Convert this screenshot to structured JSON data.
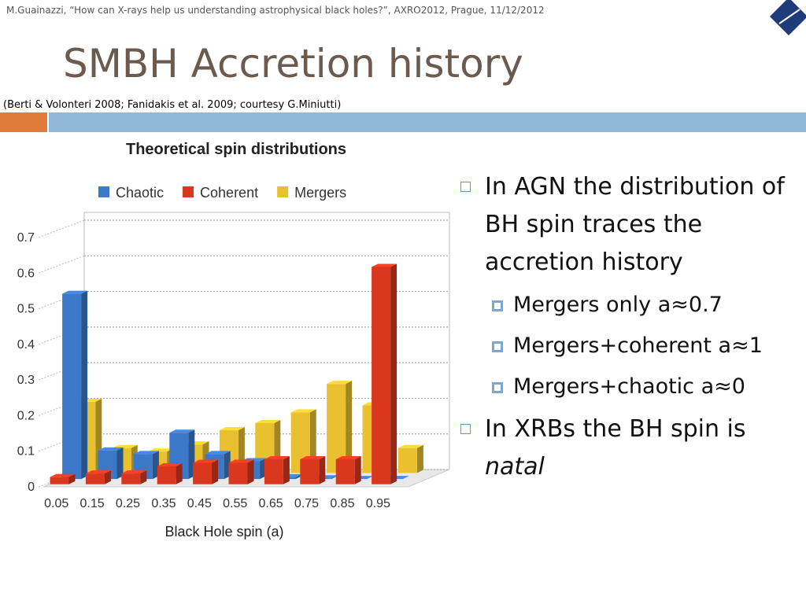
{
  "header": {
    "citation": "M.Guainazzi, “How can X-rays help us understanding astrophysical black holes?”, AXRO2012, Prague, 11/12/2012",
    "title": "SMBH Accretion history",
    "reference": "(Berti & Volonteri 2008; Fanidakis et al. 2009; courtesy G.Miniutti)"
  },
  "bullets": [
    {
      "text": "In AGN the distribution of BH spin traces the accretion history",
      "sub": [
        "Mergers only a≈0.7",
        "Mergers+coherent a≈1",
        "Mergers+chaotic a≈0"
      ]
    },
    {
      "text": "In XRBs the BH spin is",
      "emphasis": "natal"
    }
  ],
  "chart_data": {
    "type": "bar",
    "title": "Theoretical spin distributions",
    "x_label": "Black Hole spin (a)",
    "categories": [
      "0.05",
      "0.15",
      "0.25",
      "0.35",
      "0.45",
      "0.55",
      "0.65",
      "0.75",
      "0.85",
      "0.95"
    ],
    "series": [
      {
        "name": "Chaotic",
        "color": "#3b78c8",
        "values": [
          0.52,
          0.08,
          0.07,
          0.13,
          0.07,
          0.05,
          0.005,
          0.002,
          0,
          0
        ]
      },
      {
        "name": "Coherent",
        "color": "#d9381e",
        "values": [
          0.02,
          0.03,
          0.03,
          0.05,
          0.06,
          0.06,
          0.07,
          0.07,
          0.07,
          0.61
        ]
      },
      {
        "name": "Mergers",
        "color": "#e8c030",
        "values": [
          0.2,
          0.07,
          0.06,
          0.08,
          0.12,
          0.14,
          0.17,
          0.25,
          0.19,
          0.07
        ]
      }
    ],
    "ylim": [
      0,
      0.7
    ],
    "yticks": [
      0,
      0.1,
      0.2,
      0.3,
      0.4,
      0.5,
      0.6,
      0.7
    ],
    "grid": true
  }
}
